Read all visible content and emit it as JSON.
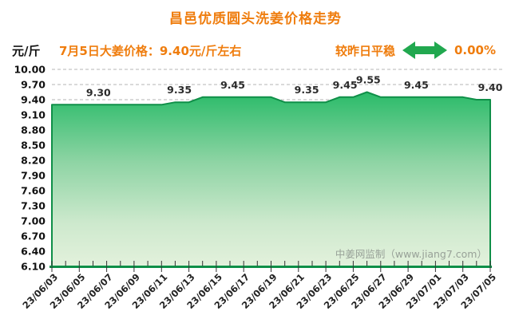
{
  "title": {
    "text": "昌邑优质圆头洗姜价格走势",
    "color": "#ef7d0e"
  },
  "info_bar": {
    "unit": "元/斤",
    "price_note": "7月5日大姜价格：9.40元/斤左右",
    "trend_label": "较昨日平稳",
    "trend_value": "0.00%",
    "trend_icon": "double-headed-horizontal-arrow",
    "trend_arrow_color": "#21a84f",
    "accent_color": "#ef7d0e"
  },
  "watermark": {
    "text": "中姜网监制（www.jiang7.com）",
    "color": "#98a198"
  },
  "chart_data": {
    "type": "area",
    "title": "昌邑优质圆头洗姜价格走势",
    "xlabel": "",
    "ylabel": "元/斤",
    "ylim": [
      6.1,
      10.0
    ],
    "ytick_step": 0.3,
    "yticks": [
      "10.00",
      "9.70",
      "9.40",
      "9.10",
      "8.80",
      "8.50",
      "8.20",
      "7.90",
      "7.60",
      "7.30",
      "7.00",
      "6.70",
      "6.40",
      "6.10"
    ],
    "x": [
      "23/06/03",
      "23/06/04",
      "23/06/05",
      "23/06/06",
      "23/06/07",
      "23/06/08",
      "23/06/09",
      "23/06/10",
      "23/06/11",
      "23/06/12",
      "23/06/13",
      "23/06/14",
      "23/06/15",
      "23/06/16",
      "23/06/17",
      "23/06/18",
      "23/06/19",
      "23/06/20",
      "23/06/21",
      "23/06/22",
      "23/06/23",
      "23/06/24",
      "23/06/25",
      "23/06/26",
      "23/06/27",
      "23/06/28",
      "23/06/29",
      "23/06/30",
      "23/07/01",
      "23/07/02",
      "23/07/03",
      "23/07/04",
      "23/07/05"
    ],
    "values": [
      9.3,
      9.3,
      9.3,
      9.3,
      9.3,
      9.3,
      9.3,
      9.3,
      9.3,
      9.35,
      9.35,
      9.45,
      9.45,
      9.45,
      9.45,
      9.45,
      9.45,
      9.35,
      9.35,
      9.35,
      9.35,
      9.45,
      9.45,
      9.55,
      9.45,
      9.45,
      9.45,
      9.45,
      9.45,
      9.45,
      9.45,
      9.4,
      9.4
    ],
    "x_tick_labels": [
      "23/06/03",
      "23/06/05",
      "23/06/07",
      "23/06/09",
      "23/06/11",
      "23/06/13",
      "23/06/15",
      "23/06/17",
      "23/06/19",
      "23/06/21",
      "23/06/23",
      "23/06/25",
      "23/06/27",
      "23/06/29",
      "23/07/01",
      "23/07/03",
      "23/07/05"
    ],
    "x_tick_every": 2,
    "point_labels": [
      {
        "text": "9.30",
        "day": 3.4
      },
      {
        "text": "9.35",
        "day": 9.3
      },
      {
        "text": "9.45",
        "day": 13.2
      },
      {
        "text": "9.35",
        "day": 18.6
      },
      {
        "text": "9.45",
        "day": 21.4
      },
      {
        "text": "9.55",
        "day": 23.1
      },
      {
        "text": "9.45",
        "day": 26.6
      },
      {
        "text": "9.40",
        "day": 32
      }
    ],
    "grid": {
      "style": "dashed",
      "color": "#b5b5b5",
      "orientation": "horizontal"
    },
    "legend": null,
    "colors": {
      "line": "#0f8f48",
      "fill_top": "#2abb69",
      "fill_mid": "#8ed4a4",
      "fill_low": "#cde9cd",
      "fill_bottom": "#e3f1dc",
      "axis": "#0f8f48",
      "tick": "#333333",
      "tick_label": "#222222",
      "point_label": "#2b2b2b",
      "y_label": "#111111"
    }
  }
}
